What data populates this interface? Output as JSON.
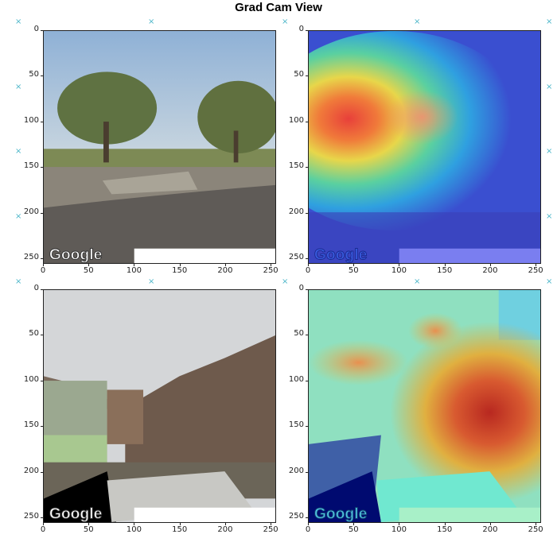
{
  "chart_data": [
    {
      "type": "heatmap",
      "panel": "original image 1",
      "title": "Grad Cam View",
      "xticks": [
        0,
        50,
        100,
        150,
        200,
        250
      ],
      "yticks": [
        0,
        50,
        100,
        150,
        200,
        250
      ],
      "xlim": [
        0,
        256
      ],
      "ylim": [
        256,
        0
      ],
      "watermark": "Google",
      "overlay": "none"
    },
    {
      "type": "heatmap",
      "panel": "grad-cam overlay 1",
      "xticks": [
        0,
        50,
        100,
        150,
        200,
        250
      ],
      "yticks": [
        0,
        50,
        100,
        150,
        200,
        250
      ],
      "xlim": [
        0,
        256
      ],
      "ylim": [
        256,
        0
      ],
      "watermark": "Google",
      "overlay": "jet colormap",
      "hotspot": "trees, center-left around x 70, y 110"
    },
    {
      "type": "heatmap",
      "panel": "original image 2",
      "xticks": [
        0,
        50,
        100,
        150,
        200,
        250
      ],
      "yticks": [
        0,
        50,
        100,
        150,
        200,
        250
      ],
      "xlim": [
        0,
        256
      ],
      "ylim": [
        256,
        0
      ],
      "watermark": "Google",
      "overlay": "none"
    },
    {
      "type": "heatmap",
      "panel": "grad-cam overlay 2",
      "xticks": [
        0,
        50,
        100,
        150,
        200,
        250
      ],
      "yticks": [
        0,
        50,
        100,
        150,
        200,
        250
      ],
      "xlim": [
        0,
        256
      ],
      "ylim": [
        256,
        0
      ],
      "watermark": "Google",
      "overlay": "jet colormap",
      "hotspot": "mountain slope, right around x 210, y 130"
    }
  ],
  "figure": {
    "title": "Grad Cam View",
    "marker_color": "#4bb6c9",
    "marker_glyph": "×"
  }
}
